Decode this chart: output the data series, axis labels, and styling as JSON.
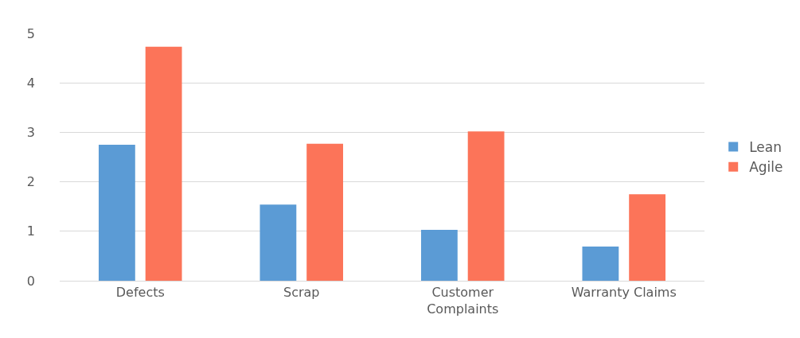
{
  "chart_data": {
    "type": "bar",
    "categories": [
      "Defects",
      "Scrap",
      "Customer Complaints",
      "Warranty Claims"
    ],
    "series": [
      {
        "name": "Lean",
        "color": "#5b9bd5",
        "values": [
          2.75,
          1.54,
          1.03,
          0.69
        ]
      },
      {
        "name": "Agile",
        "color": "#fc7459",
        "values": [
          4.73,
          2.77,
          3.02,
          1.75
        ]
      }
    ],
    "ylim": [
      0,
      5
    ],
    "yticks": [
      0,
      1,
      2,
      3,
      4,
      5
    ],
    "grid": "y",
    "legend": "right"
  }
}
